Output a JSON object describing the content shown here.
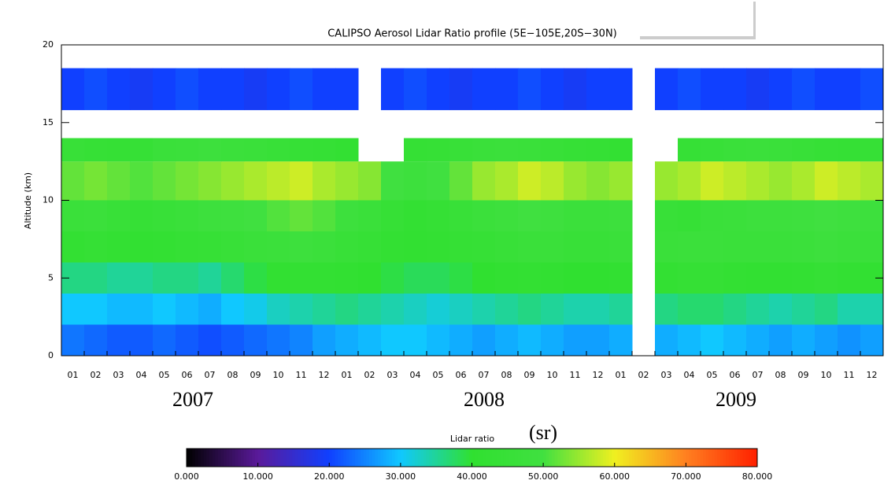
{
  "chart_data": {
    "type": "heatmap",
    "title": "CALIPSO Aerosol Lidar Ratio profile (5E−105E,20S−30N)",
    "y_label": "Altitude (km)",
    "categories": [
      "01",
      "02",
      "03",
      "04",
      "05",
      "06",
      "07",
      "08",
      "09",
      "10",
      "11",
      "12",
      "01",
      "02",
      "03",
      "04",
      "05",
      "06",
      "07",
      "08",
      "09",
      "10",
      "11",
      "12",
      "01",
      "02",
      "03",
      "04",
      "05",
      "06",
      "07",
      "08",
      "09",
      "10",
      "11",
      "12"
    ],
    "year_labels": [
      "2007",
      "2008",
      "2009"
    ],
    "ylim": [
      0,
      20
    ],
    "yticks": [
      0,
      5,
      10,
      15,
      20
    ],
    "rows": [
      {
        "range": [
          0,
          2
        ],
        "values": [
          24,
          23,
          22,
          22,
          23,
          22,
          21,
          22,
          23,
          24,
          25,
          27,
          28,
          29,
          30,
          30,
          29,
          28,
          27,
          28,
          29,
          28,
          27,
          27,
          28,
          null,
          28,
          29,
          30,
          29,
          28,
          27,
          28,
          27,
          26,
          27
        ]
      },
      {
        "range": [
          2,
          4
        ],
        "values": [
          30,
          30,
          29,
          29,
          30,
          29,
          28,
          30,
          31,
          33,
          34,
          35,
          36,
          35,
          34,
          33,
          32,
          33,
          34,
          35,
          36,
          35,
          34,
          34,
          35,
          null,
          36,
          37,
          37,
          36,
          35,
          34,
          35,
          36,
          34,
          34
        ]
      },
      {
        "range": [
          4,
          6
        ],
        "values": [
          36,
          36,
          35,
          35,
          36,
          36,
          35,
          37,
          39,
          41,
          42,
          42,
          41,
          40,
          39,
          38,
          38,
          39,
          40,
          41,
          42,
          41,
          40,
          40,
          41,
          null,
          42,
          43,
          43,
          42,
          41,
          41,
          42,
          43,
          42,
          41
        ]
      },
      {
        "range": [
          6,
          8
        ],
        "values": [
          42,
          43,
          42,
          41,
          42,
          43,
          44,
          45,
          46,
          47,
          48,
          47,
          45,
          44,
          42,
          41,
          42,
          43,
          44,
          45,
          46,
          46,
          45,
          45,
          46,
          null,
          46,
          47,
          47,
          46,
          46,
          46,
          47,
          48,
          47,
          46
        ]
      },
      {
        "range": [
          8,
          10
        ],
        "values": [
          46,
          47,
          45,
          44,
          45,
          46,
          48,
          49,
          50,
          51,
          52,
          51,
          48,
          46,
          44,
          42,
          43,
          45,
          47,
          48,
          50,
          49,
          47,
          47,
          48,
          null,
          45,
          44,
          46,
          47,
          48,
          48,
          49,
          50,
          49,
          48
        ]
      },
      {
        "range": [
          10,
          12.5
        ],
        "values": [
          52,
          53,
          52,
          51,
          52,
          53,
          54,
          55,
          56,
          57,
          58,
          56,
          55,
          54,
          50,
          48,
          50,
          52,
          55,
          56,
          58,
          57,
          55,
          54,
          55,
          null,
          55,
          56,
          58,
          57,
          56,
          55,
          56,
          58,
          57,
          56
        ]
      },
      {
        "range": [
          12.5,
          14
        ],
        "values": [
          45,
          44,
          43,
          44,
          46,
          47,
          48,
          47,
          46,
          45,
          44,
          43,
          42,
          null,
          null,
          43,
          44,
          45,
          46,
          47,
          46,
          45,
          44,
          43,
          42,
          null,
          null,
          44,
          45,
          46,
          47,
          46,
          45,
          44,
          43,
          44
        ]
      },
      {
        "range": [
          15.8,
          18.5
        ],
        "values": [
          20,
          21,
          20,
          19,
          20,
          21,
          20,
          20,
          19,
          20,
          21,
          20,
          20,
          null,
          20,
          21,
          20,
          19,
          20,
          20,
          21,
          20,
          19,
          20,
          20,
          null,
          20,
          21,
          20,
          20,
          19,
          20,
          21,
          20,
          20,
          21
        ]
      }
    ],
    "colorbar_label": "Lidar ratio",
    "colorbar_unit": "(sr)",
    "clim": [
      0,
      80
    ],
    "colormap": [
      "#000000",
      "#5a1a9a",
      "#1040ff",
      "#10c8ff",
      "#30e030",
      "#40e040",
      "#f0f020",
      "#ff8020",
      "#ff2000"
    ],
    "colorbar_ticks": [
      {
        "value": 0,
        "label": "0.000"
      },
      {
        "value": 10,
        "label": "10.000"
      },
      {
        "value": 20,
        "label": "20.000"
      },
      {
        "value": 30,
        "label": "30.000"
      },
      {
        "value": 40,
        "label": "40.000"
      },
      {
        "value": 50,
        "label": "50.000"
      },
      {
        "value": 60,
        "label": "60.000"
      },
      {
        "value": 70,
        "label": "70.000"
      },
      {
        "value": 80,
        "label": "80.000"
      }
    ]
  }
}
